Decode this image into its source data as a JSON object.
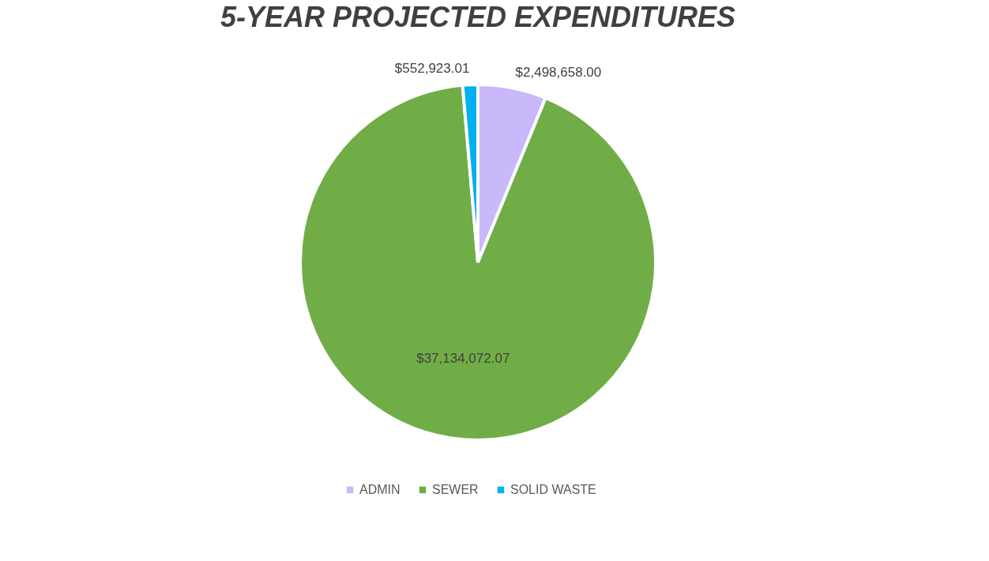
{
  "chart_data": {
    "type": "pie",
    "title": "5-YEAR PROJECTED EXPENDITURES",
    "categories": [
      "ADMIN",
      "SEWER",
      "SOLID WASTE"
    ],
    "values": [
      2498658.0,
      37134072.07,
      552923.01
    ],
    "colors": [
      "#c9b8fa",
      "#70ad47",
      "#00b0f0"
    ],
    "value_labels": [
      "$2,498,658.00",
      "$37,134,072.07",
      "$552,923.01"
    ],
    "legend": "bottom"
  }
}
